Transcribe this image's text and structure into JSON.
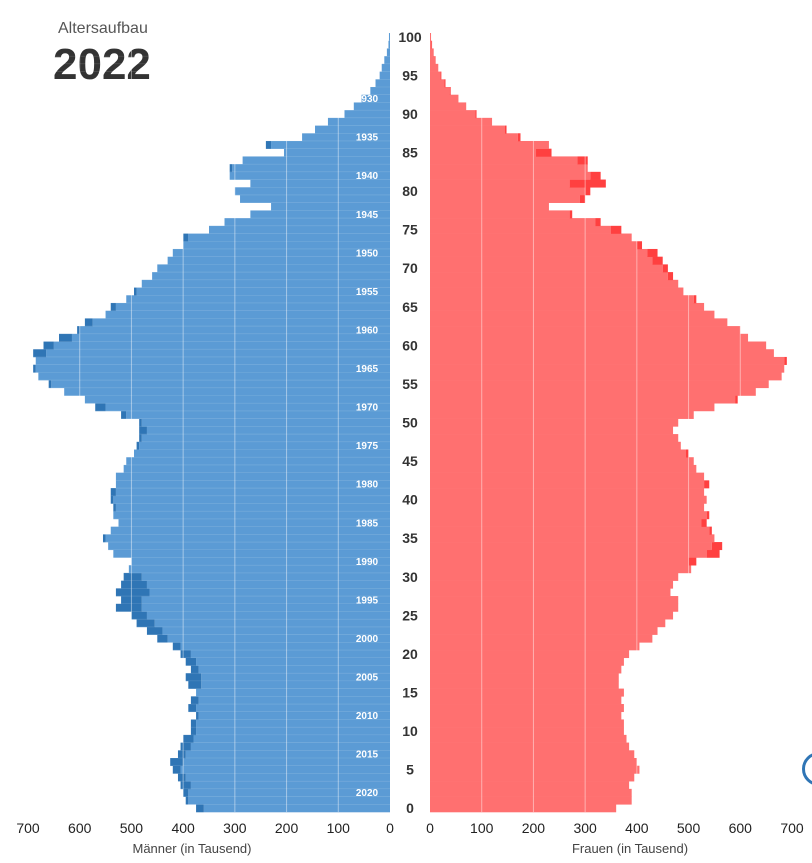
{
  "header": {
    "subtitle": "Altersaufbau",
    "year": "2022"
  },
  "colors": {
    "male": "#5b9bd5",
    "male_dark": "#2f75b5",
    "female": "#ff7070",
    "female_dark": "#ff4040",
    "grid": "#ffffff",
    "text": "#333333"
  },
  "chart_data": {
    "type": "bar",
    "orientation": "horizontal-population-pyramid",
    "title": "Altersaufbau 2022",
    "xlabel_left": "Männer (in Tausend)",
    "xlabel_right": "Frauen (in Tausend)",
    "xlim": [
      0,
      700
    ],
    "x_ticks": [
      "0",
      "100",
      "200",
      "300",
      "400",
      "500",
      "600",
      "700"
    ],
    "age_ticks": [
      "0",
      "5",
      "10",
      "15",
      "20",
      "25",
      "30",
      "35",
      "40",
      "45",
      "50",
      "55",
      "60",
      "65",
      "70",
      "75",
      "80",
      "85",
      "90",
      "95",
      "100"
    ],
    "birth_year_labels": [
      {
        "age": 2,
        "label": "2020"
      },
      {
        "age": 7,
        "label": "2015"
      },
      {
        "age": 12,
        "label": "2010"
      },
      {
        "age": 17,
        "label": "2005"
      },
      {
        "age": 22,
        "label": "2000"
      },
      {
        "age": 27,
        "label": "1995"
      },
      {
        "age": 32,
        "label": "1990"
      },
      {
        "age": 37,
        "label": "1985"
      },
      {
        "age": 42,
        "label": "1980"
      },
      {
        "age": 47,
        "label": "1975"
      },
      {
        "age": 52,
        "label": "1970"
      },
      {
        "age": 57,
        "label": "1965"
      },
      {
        "age": 62,
        "label": "1960"
      },
      {
        "age": 67,
        "label": "1955"
      },
      {
        "age": 72,
        "label": "1950"
      },
      {
        "age": 77,
        "label": "1945"
      },
      {
        "age": 82,
        "label": "1940"
      },
      {
        "age": 87,
        "label": "1935"
      },
      {
        "age": 92,
        "label": "1930"
      }
    ],
    "ages": [
      0,
      1,
      2,
      3,
      4,
      5,
      6,
      7,
      8,
      9,
      10,
      11,
      12,
      13,
      14,
      15,
      16,
      17,
      18,
      19,
      20,
      21,
      22,
      23,
      24,
      25,
      26,
      27,
      28,
      29,
      30,
      31,
      32,
      33,
      34,
      35,
      36,
      37,
      38,
      39,
      40,
      41,
      42,
      43,
      44,
      45,
      46,
      47,
      48,
      49,
      50,
      51,
      52,
      53,
      54,
      55,
      56,
      57,
      58,
      59,
      60,
      61,
      62,
      63,
      64,
      65,
      66,
      67,
      68,
      69,
      70,
      71,
      72,
      73,
      74,
      75,
      76,
      77,
      78,
      79,
      80,
      81,
      82,
      83,
      84,
      85,
      86,
      87,
      88,
      89,
      90,
      91,
      92,
      93,
      94,
      95,
      96,
      97,
      98,
      99,
      100
    ],
    "series": [
      {
        "name": "Männer",
        "values": [
          375,
          395,
          400,
          405,
          410,
          420,
          425,
          410,
          405,
          400,
          385,
          385,
          375,
          390,
          385,
          375,
          390,
          395,
          385,
          395,
          405,
          420,
          450,
          470,
          490,
          500,
          530,
          520,
          530,
          520,
          515,
          505,
          500,
          535,
          545,
          555,
          540,
          525,
          535,
          535,
          540,
          540,
          530,
          530,
          515,
          510,
          495,
          490,
          485,
          485,
          485,
          520,
          570,
          590,
          630,
          660,
          680,
          690,
          685,
          690,
          670,
          640,
          605,
          590,
          550,
          540,
          510,
          495,
          480,
          460,
          450,
          430,
          420,
          400,
          400,
          350,
          320,
          270,
          230,
          290,
          300,
          270,
          310,
          310,
          285,
          205,
          240,
          170,
          145,
          120,
          88,
          70,
          55,
          38,
          28,
          20,
          16,
          11,
          6,
          3,
          2
        ]
      },
      {
        "name": "Frauen",
        "values": [
          360,
          390,
          390,
          385,
          395,
          405,
          400,
          395,
          385,
          380,
          375,
          375,
          370,
          375,
          370,
          375,
          365,
          365,
          370,
          375,
          385,
          405,
          430,
          440,
          455,
          470,
          480,
          480,
          465,
          470,
          480,
          505,
          515,
          560,
          565,
          550,
          545,
          535,
          540,
          530,
          535,
          530,
          540,
          530,
          515,
          510,
          500,
          485,
          480,
          470,
          480,
          510,
          550,
          595,
          630,
          655,
          680,
          685,
          690,
          665,
          650,
          615,
          600,
          575,
          550,
          530,
          515,
          490,
          480,
          470,
          460,
          450,
          440,
          410,
          390,
          370,
          330,
          275,
          230,
          300,
          310,
          340,
          330,
          305,
          305,
          235,
          230,
          175,
          148,
          120,
          90,
          70,
          55,
          40,
          30,
          22,
          16,
          11,
          7,
          4,
          2
        ]
      }
    ]
  }
}
